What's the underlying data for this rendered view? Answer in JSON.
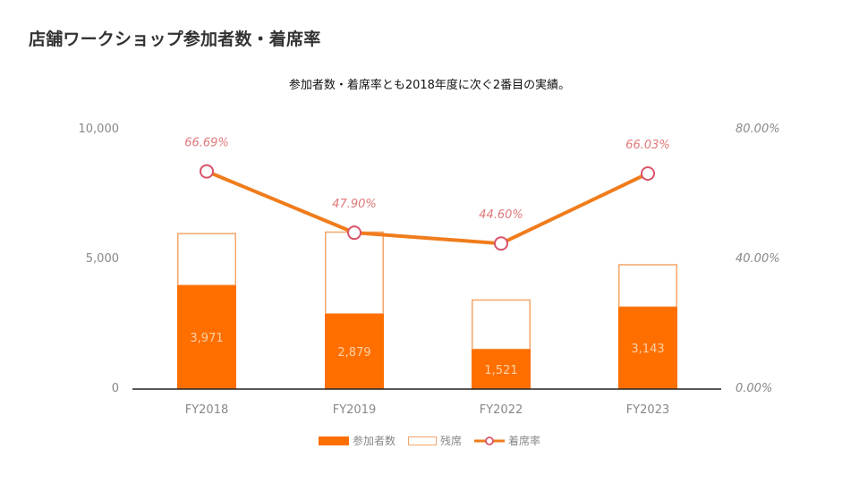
{
  "header": {
    "title": "店舗ワークショップ参加者数・着席率",
    "subtitle": "参加者数・着席率とも2018年度に次ぐ2番目の実績。"
  },
  "colors": {
    "participants": "#ff6f00",
    "remaining_outline": "#f4a66a",
    "rate_line": "#f07c1c",
    "rate_marker": "#d9536b",
    "rate_label": "#e0787a",
    "axis_text": "#888888"
  },
  "axes": {
    "left_ticks": [
      "10,000",
      "5,000",
      "0"
    ],
    "right_ticks": [
      "80.00%",
      "40.00%",
      "0.00%"
    ]
  },
  "legend": {
    "participants": "参加者数",
    "remaining": "残席",
    "rate": "着席率"
  },
  "bars": [
    {
      "category": "FY2018",
      "participants_label": "3,971",
      "rate_label": "66.69%"
    },
    {
      "category": "FY2019",
      "participants_label": "2,879",
      "rate_label": "47.90%"
    },
    {
      "category": "FY2022",
      "participants_label": "1,521",
      "rate_label": "44.60%"
    },
    {
      "category": "FY2023",
      "participants_label": "3,143",
      "rate_label": "66.03%"
    }
  ],
  "chart_data": {
    "type": "bar",
    "title": "店舗ワークショップ参加者数・着席率",
    "subtitle": "参加者数・着席率とも2018年度に次ぐ2番目の実績。",
    "categories": [
      "FY2018",
      "FY2019",
      "FY2022",
      "FY2023"
    ],
    "series": [
      {
        "name": "参加者数",
        "type": "stacked-bar",
        "axis": "left",
        "values": [
          3971,
          2879,
          1521,
          3143
        ]
      },
      {
        "name": "残席",
        "type": "stacked-bar",
        "axis": "left",
        "values": [
          1983,
          3131,
          1889,
          1617
        ]
      },
      {
        "name": "着席率",
        "type": "line",
        "axis": "right",
        "values": [
          66.69,
          47.9,
          44.6,
          66.03
        ],
        "unit": "%"
      }
    ],
    "xlabel": "",
    "ylabel": "",
    "ylim": [
      0,
      10000
    ],
    "y2lim": [
      0,
      80
    ],
    "left_ticks": [
      0,
      5000,
      10000
    ],
    "right_ticks": [
      "0.00%",
      "40.00%",
      "80.00%"
    ],
    "grid": false,
    "legend_position": "bottom"
  }
}
